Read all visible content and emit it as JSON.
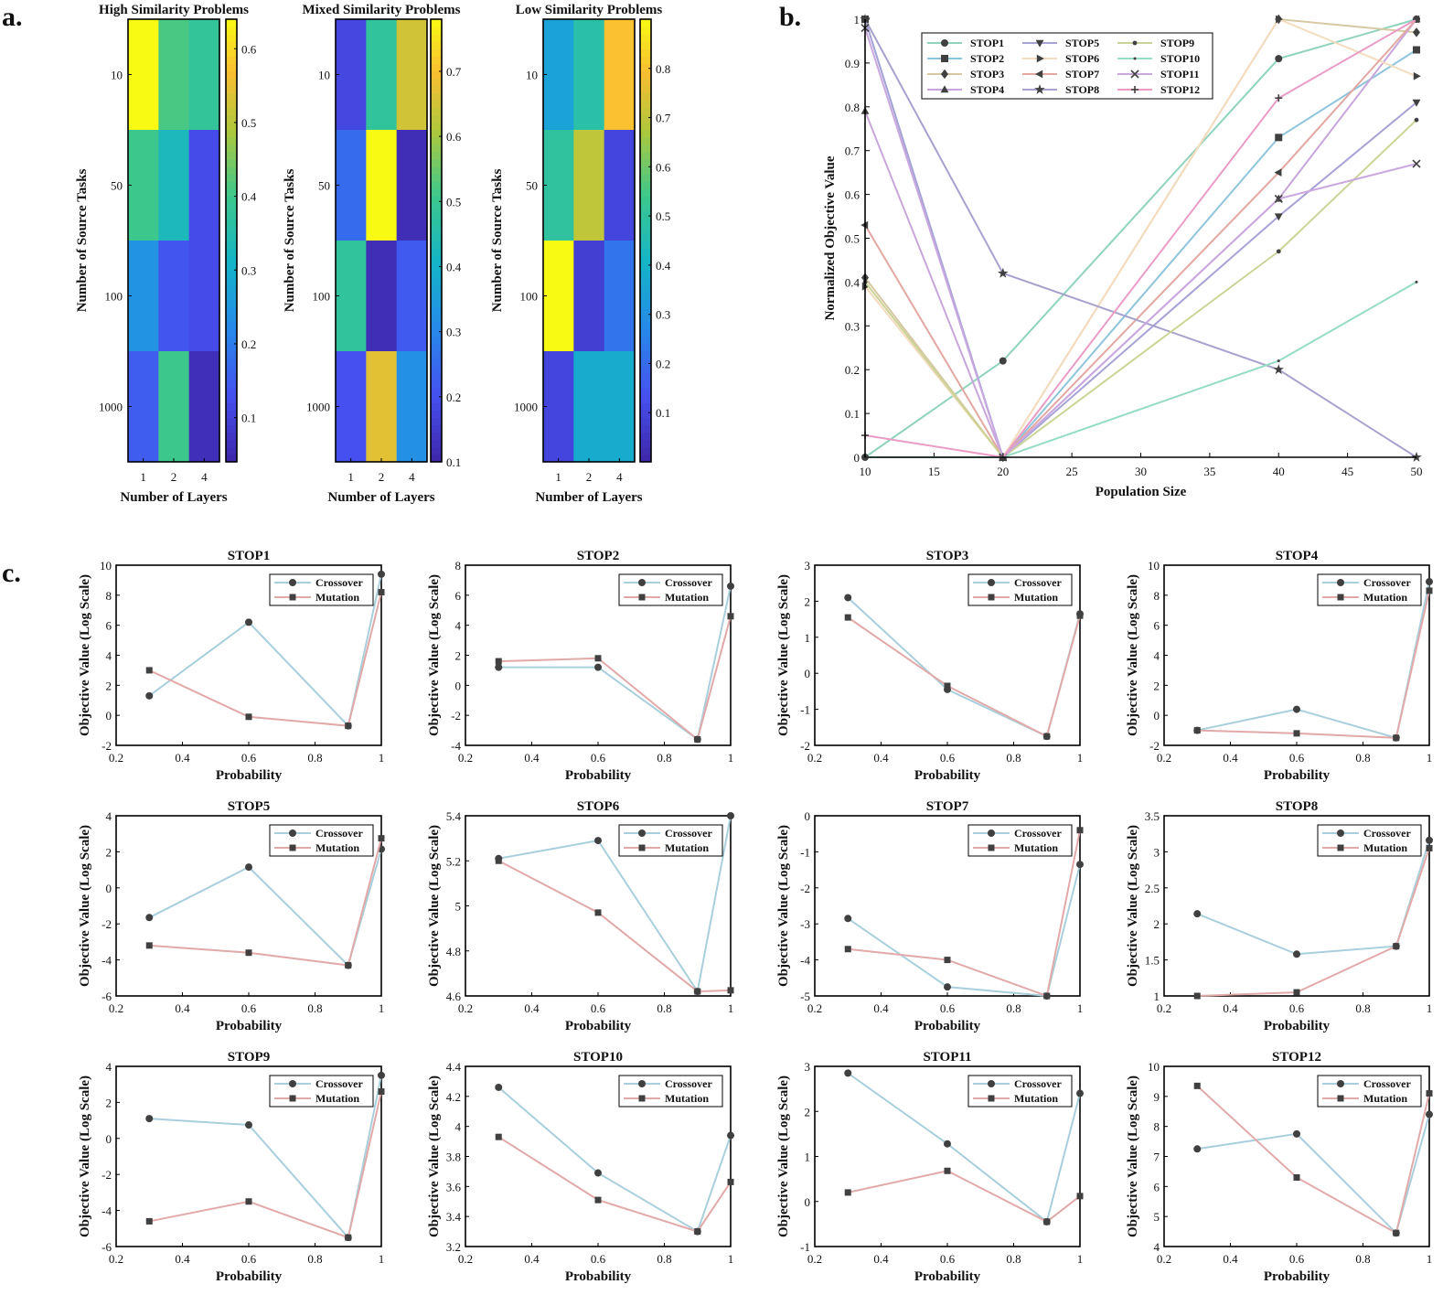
{
  "panel_labels": {
    "a": "a.",
    "b": "b.",
    "c": "c."
  },
  "colors": {
    "crossover": "#a9cfdc",
    "mutation": "#e2a9a9",
    "marker": "#404040",
    "stop_series": [
      "#8fd3bb",
      "#8ec4dc",
      "#d5c8a2",
      "#c8a6dc",
      "#a8a3d6",
      "#f3dcbf",
      "#e3a7a2",
      "#a6a2cd",
      "#cbd496",
      "#95dcc4",
      "#c9a8e0",
      "#ea9cc6"
    ]
  },
  "chart_data": [
    {
      "id": "heat-high",
      "type": "heatmap",
      "title": "High Similarity Problems",
      "xlabel": "Number of Layers",
      "ylabel": "Number of Source Tasks",
      "x_categories": [
        "1",
        "2",
        "4"
      ],
      "y_categories": [
        "10",
        "50",
        "100",
        "1000"
      ],
      "values": [
        [
          0.64,
          0.41,
          0.38
        ],
        [
          0.4,
          0.33,
          0.12
        ],
        [
          0.24,
          0.14,
          0.12
        ],
        [
          0.15,
          0.4,
          0.06
        ]
      ],
      "clim": [
        0.04,
        0.64
      ],
      "colorbar_ticks": [
        "0.1",
        "0.2",
        "0.3",
        "0.4",
        "0.5",
        "0.6"
      ],
      "colorbar_values": [
        0.1,
        0.2,
        0.3,
        0.4,
        0.5,
        0.6
      ]
    },
    {
      "id": "heat-mixed",
      "type": "heatmap",
      "title": "Mixed Similarity Problems",
      "xlabel": "Number of Layers",
      "ylabel": "Number of Source Tasks",
      "x_categories": [
        "1",
        "2",
        "4"
      ],
      "y_categories": [
        "10",
        "50",
        "100",
        "1000"
      ],
      "values": [
        [
          0.18,
          0.48,
          0.65
        ],
        [
          0.25,
          0.78,
          0.12
        ],
        [
          0.48,
          0.12,
          0.22
        ],
        [
          0.2,
          0.67,
          0.32
        ]
      ],
      "clim": [
        0.1,
        0.78
      ],
      "colorbar_ticks": [
        "0.1",
        "0.2",
        "0.3",
        "0.4",
        "0.5",
        "0.6",
        "0.7"
      ],
      "colorbar_values": [
        0.1,
        0.2,
        0.3,
        0.4,
        0.5,
        0.6,
        0.7
      ]
    },
    {
      "id": "heat-low",
      "type": "heatmap",
      "title": "Low Similarity Problems",
      "xlabel": "Number of Layers",
      "ylabel": "Number of Source Tasks",
      "x_categories": [
        "1",
        "2",
        "4"
      ],
      "y_categories": [
        "10",
        "50",
        "100",
        "1000"
      ],
      "values": [
        [
          0.35,
          0.48,
          0.8
        ],
        [
          0.5,
          0.7,
          0.1
        ],
        [
          0.9,
          0.08,
          0.22
        ],
        [
          0.1,
          0.38,
          0.38
        ]
      ],
      "clim": [
        0.0,
        0.9
      ],
      "colorbar_ticks": [
        "0.1",
        "0.2",
        "0.3",
        "0.4",
        "0.5",
        "0.6",
        "0.7",
        "0.8"
      ],
      "colorbar_values": [
        0.1,
        0.2,
        0.3,
        0.4,
        0.5,
        0.6,
        0.7,
        0.8
      ]
    },
    {
      "id": "pop-lines",
      "type": "line",
      "xlabel": "Population Size",
      "ylabel": "Normalized Objective Value",
      "xlim": [
        10,
        50
      ],
      "ylim": [
        0,
        1
      ],
      "xticks": [
        10,
        15,
        20,
        25,
        30,
        35,
        40,
        45,
        50
      ],
      "yticks": [
        0,
        0.1,
        0.2,
        0.3,
        0.4,
        0.5,
        0.6,
        0.7,
        0.8,
        0.9,
        1
      ],
      "ytick_labels": [
        "0",
        "0.1",
        "0.2",
        "0.3",
        "0.4",
        "0.5",
        "0.6",
        "0.7",
        "0.8",
        "0.9",
        "1"
      ],
      "legend_position": "top-left",
      "x": [
        10,
        20,
        40,
        50
      ],
      "series": [
        {
          "name": "STOP1",
          "marker": "circle",
          "values": [
            0,
            0.22,
            0.91,
            1.0
          ]
        },
        {
          "name": "STOP2",
          "marker": "square",
          "values": [
            1.0,
            0,
            0.73,
            0.93
          ]
        },
        {
          "name": "STOP3",
          "marker": "diamond",
          "values": [
            0.41,
            0,
            1.0,
            0.97
          ]
        },
        {
          "name": "STOP4",
          "marker": "triangle-up",
          "values": [
            0.79,
            0,
            0.59,
            1.0
          ]
        },
        {
          "name": "STOP5",
          "marker": "triangle-down",
          "values": [
            1.0,
            0,
            0.55,
            0.81
          ]
        },
        {
          "name": "STOP6",
          "marker": "triangle-right",
          "values": [
            0.39,
            0,
            1.0,
            0.87
          ]
        },
        {
          "name": "STOP7",
          "marker": "triangle-left",
          "values": [
            0.53,
            0,
            0.65,
            1.0
          ]
        },
        {
          "name": "STOP8",
          "marker": "star",
          "values": [
            1.0,
            0.42,
            0.2,
            0
          ]
        },
        {
          "name": "STOP9",
          "marker": "dot",
          "values": [
            0.4,
            0,
            0.47,
            0.77
          ]
        },
        {
          "name": "STOP10",
          "marker": "point",
          "values": [
            0,
            0,
            0.22,
            0.4
          ]
        },
        {
          "name": "STOP11",
          "marker": "x",
          "values": [
            0.98,
            0,
            0.59,
            0.67
          ]
        },
        {
          "name": "STOP12",
          "marker": "plus",
          "values": [
            0.05,
            0,
            0.82,
            1.0
          ]
        }
      ]
    },
    {
      "id": "stop1",
      "type": "line",
      "title": "STOP1",
      "xlabel": "Probability",
      "ylabel": "Objective Value (Log Scale)",
      "x": [
        0.3,
        0.6,
        0.9,
        1.0
      ],
      "xlim": [
        0.2,
        1
      ],
      "ylim": [
        -2,
        10
      ],
      "yticks": [
        -2,
        0,
        2,
        4,
        6,
        8,
        10
      ],
      "ytick_labels": [
        "-2",
        "0",
        "2",
        "4",
        "6",
        "8",
        "10"
      ],
      "series": [
        {
          "name": "Crossover",
          "marker": "circle",
          "values": [
            1.3,
            6.2,
            -0.7,
            9.4
          ]
        },
        {
          "name": "Mutation",
          "marker": "square",
          "values": [
            3.0,
            -0.1,
            -0.7,
            8.2
          ]
        }
      ]
    },
    {
      "id": "stop2",
      "type": "line",
      "title": "STOP2",
      "xlabel": "Probability",
      "ylabel": "Objective Value (Log Scale)",
      "x": [
        0.3,
        0.6,
        0.9,
        1.0
      ],
      "xlim": [
        0.2,
        1
      ],
      "ylim": [
        -4,
        8
      ],
      "yticks": [
        -4,
        -2,
        0,
        2,
        4,
        6,
        8
      ],
      "ytick_labels": [
        "-4",
        "-2",
        "0",
        "2",
        "4",
        "6",
        "8"
      ],
      "series": [
        {
          "name": "Crossover",
          "marker": "circle",
          "values": [
            1.2,
            1.2,
            -3.6,
            6.6
          ]
        },
        {
          "name": "Mutation",
          "marker": "square",
          "values": [
            1.6,
            1.8,
            -3.6,
            4.6
          ]
        }
      ]
    },
    {
      "id": "stop3",
      "type": "line",
      "title": "STOP3",
      "xlabel": "Probability",
      "ylabel": "Objective Value (Log Scale)",
      "x": [
        0.3,
        0.6,
        0.9,
        1.0
      ],
      "xlim": [
        0.2,
        1
      ],
      "ylim": [
        -2,
        3
      ],
      "yticks": [
        -2,
        -1,
        0,
        1,
        2,
        3
      ],
      "ytick_labels": [
        "-2",
        "-1",
        "0",
        "1",
        "2",
        "3"
      ],
      "series": [
        {
          "name": "Crossover",
          "marker": "circle",
          "values": [
            2.1,
            -0.45,
            -1.75,
            1.65
          ]
        },
        {
          "name": "Mutation",
          "marker": "square",
          "values": [
            1.55,
            -0.35,
            -1.75,
            1.6
          ]
        }
      ]
    },
    {
      "id": "stop4",
      "type": "line",
      "title": "STOP4",
      "xlabel": "Probability",
      "ylabel": "Objective Value (Log Scale)",
      "x": [
        0.3,
        0.6,
        0.9,
        1.0
      ],
      "xlim": [
        0.2,
        1
      ],
      "ylim": [
        -2,
        10
      ],
      "yticks": [
        -2,
        0,
        2,
        4,
        6,
        8,
        10
      ],
      "ytick_labels": [
        "-2",
        "0",
        "2",
        "4",
        "6",
        "8",
        "10"
      ],
      "series": [
        {
          "name": "Crossover",
          "marker": "circle",
          "values": [
            -1.0,
            0.4,
            -1.5,
            8.9
          ]
        },
        {
          "name": "Mutation",
          "marker": "square",
          "values": [
            -1.0,
            -1.2,
            -1.5,
            8.3
          ]
        }
      ]
    },
    {
      "id": "stop5",
      "type": "line",
      "title": "STOP5",
      "xlabel": "Probability",
      "ylabel": "Objective Value (Log Scale)",
      "x": [
        0.3,
        0.6,
        0.9,
        1.0
      ],
      "xlim": [
        0.2,
        1
      ],
      "ylim": [
        -6,
        4
      ],
      "yticks": [
        -6,
        -4,
        -2,
        0,
        2,
        4
      ],
      "ytick_labels": [
        "-6",
        "-4",
        "-2",
        "0",
        "2",
        "4"
      ],
      "series": [
        {
          "name": "Crossover",
          "marker": "circle",
          "values": [
            -1.65,
            1.15,
            -4.3,
            2.15
          ]
        },
        {
          "name": "Mutation",
          "marker": "square",
          "values": [
            -3.2,
            -3.6,
            -4.3,
            2.75
          ]
        }
      ]
    },
    {
      "id": "stop6",
      "type": "line",
      "title": "STOP6",
      "xlabel": "Probability",
      "ylabel": "Objective Value (Log Scale)",
      "x": [
        0.3,
        0.6,
        0.9,
        1.0
      ],
      "xlim": [
        0.2,
        1
      ],
      "ylim": [
        4.6,
        5.4
      ],
      "yticks": [
        4.6,
        4.8,
        5,
        5.2,
        5.4
      ],
      "ytick_labels": [
        "4.6",
        "4.8",
        "5",
        "5.2",
        "5.4"
      ],
      "series": [
        {
          "name": "Crossover",
          "marker": "circle",
          "values": [
            5.21,
            5.29,
            4.62,
            5.4
          ]
        },
        {
          "name": "Mutation",
          "marker": "square",
          "values": [
            5.2,
            4.97,
            4.62,
            4.625
          ]
        }
      ]
    },
    {
      "id": "stop7",
      "type": "line",
      "title": "STOP7",
      "xlabel": "Probability",
      "ylabel": "Objective Value (Log Scale)",
      "x": [
        0.3,
        0.6,
        0.9,
        1.0
      ],
      "xlim": [
        0.2,
        1
      ],
      "ylim": [
        -5,
        0
      ],
      "yticks": [
        -5,
        -4,
        -3,
        -2,
        -1,
        0
      ],
      "ytick_labels": [
        "-5",
        "-4",
        "-3",
        "-2",
        "-1",
        "0"
      ],
      "series": [
        {
          "name": "Crossover",
          "marker": "circle",
          "values": [
            -2.85,
            -4.75,
            -5.0,
            -1.35
          ]
        },
        {
          "name": "Mutation",
          "marker": "square",
          "values": [
            -3.7,
            -4.0,
            -5.0,
            -0.4
          ]
        }
      ]
    },
    {
      "id": "stop8",
      "type": "line",
      "title": "STOP8",
      "xlabel": "Probability",
      "ylabel": "Objective Value (Log Scale)",
      "x": [
        0.3,
        0.6,
        0.9,
        1.0
      ],
      "xlim": [
        0.2,
        1
      ],
      "ylim": [
        1,
        3.5
      ],
      "yticks": [
        1,
        1.5,
        2,
        2.5,
        3,
        3.5
      ],
      "ytick_labels": [
        "1",
        "1.5",
        "2",
        "2.5",
        "3",
        "3.5"
      ],
      "series": [
        {
          "name": "Crossover",
          "marker": "circle",
          "values": [
            2.14,
            1.58,
            1.69,
            3.16
          ]
        },
        {
          "name": "Mutation",
          "marker": "square",
          "values": [
            1.0,
            1.05,
            1.69,
            3.05
          ]
        }
      ]
    },
    {
      "id": "stop9",
      "type": "line",
      "title": "STOP9",
      "xlabel": "Probability",
      "ylabel": "Objective Value (Log Scale)",
      "x": [
        0.3,
        0.6,
        0.9,
        1.0
      ],
      "xlim": [
        0.2,
        1
      ],
      "ylim": [
        -6,
        4
      ],
      "yticks": [
        -6,
        -4,
        -2,
        0,
        2,
        4
      ],
      "ytick_labels": [
        "-6",
        "-4",
        "-2",
        "0",
        "2",
        "4"
      ],
      "series": [
        {
          "name": "Crossover",
          "marker": "circle",
          "values": [
            1.1,
            0.75,
            -5.5,
            3.5
          ]
        },
        {
          "name": "Mutation",
          "marker": "square",
          "values": [
            -4.6,
            -3.5,
            -5.5,
            2.6
          ]
        }
      ]
    },
    {
      "id": "stop10",
      "type": "line",
      "title": "STOP10",
      "xlabel": "Probability",
      "ylabel": "Objective Value (Log Scale)",
      "x": [
        0.3,
        0.6,
        0.9,
        1.0
      ],
      "xlim": [
        0.2,
        1
      ],
      "ylim": [
        3.2,
        4.4
      ],
      "yticks": [
        3.2,
        3.4,
        3.6,
        3.8,
        4,
        4.2,
        4.4
      ],
      "ytick_labels": [
        "3.2",
        "3.4",
        "3.6",
        "3.8",
        "4",
        "4.2",
        "4.4"
      ],
      "series": [
        {
          "name": "Crossover",
          "marker": "circle",
          "values": [
            4.26,
            3.69,
            3.3,
            3.94
          ]
        },
        {
          "name": "Mutation",
          "marker": "square",
          "values": [
            3.93,
            3.51,
            3.3,
            3.63
          ]
        }
      ]
    },
    {
      "id": "stop11",
      "type": "line",
      "title": "STOP11",
      "xlabel": "Probability",
      "ylabel": "Objective Value (Log Scale)",
      "x": [
        0.3,
        0.6,
        0.9,
        1.0
      ],
      "xlim": [
        0.2,
        1
      ],
      "ylim": [
        -1,
        3
      ],
      "yticks": [
        -1,
        0,
        1,
        2,
        3
      ],
      "ytick_labels": [
        "-1",
        "0",
        "1",
        "2",
        "3"
      ],
      "series": [
        {
          "name": "Crossover",
          "marker": "circle",
          "values": [
            2.85,
            1.28,
            -0.45,
            2.4
          ]
        },
        {
          "name": "Mutation",
          "marker": "square",
          "values": [
            0.2,
            0.68,
            -0.45,
            0.12
          ]
        }
      ]
    },
    {
      "id": "stop12",
      "type": "line",
      "title": "STOP12",
      "xlabel": "Probability",
      "ylabel": "Objective Value (Log Scale)",
      "x": [
        0.3,
        0.6,
        0.9,
        1.0
      ],
      "xlim": [
        0.2,
        1
      ],
      "ylim": [
        4,
        10
      ],
      "yticks": [
        4,
        5,
        6,
        7,
        8,
        9,
        10
      ],
      "ytick_labels": [
        "4",
        "5",
        "6",
        "7",
        "8",
        "9",
        "10"
      ],
      "series": [
        {
          "name": "Crossover",
          "marker": "circle",
          "values": [
            7.25,
            7.75,
            4.45,
            8.4
          ]
        },
        {
          "name": "Mutation",
          "marker": "square",
          "values": [
            9.35,
            6.3,
            4.45,
            9.1
          ]
        }
      ]
    }
  ],
  "small_xticks": [
    0.2,
    0.4,
    0.6,
    0.8,
    1
  ],
  "small_xtick_labels": [
    "0.2",
    "0.4",
    "0.6",
    "0.8",
    "1"
  ]
}
